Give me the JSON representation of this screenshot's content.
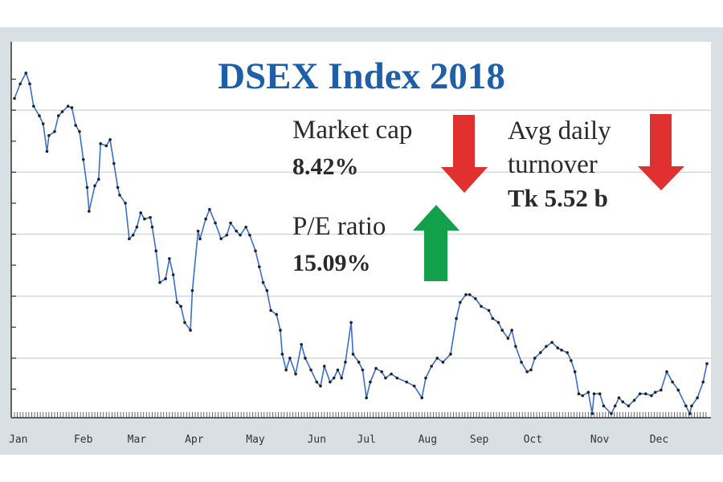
{
  "chart_data": {
    "type": "line",
    "title": "DSEX Index 2018",
    "xlabel": "",
    "ylabel": "",
    "x_unit": "day of year 2018",
    "xlim": [
      0,
      362
    ],
    "ylim": [
      5200,
      6400
    ],
    "grid": true,
    "gridlines_y": [
      5400,
      5600,
      5800,
      6000,
      6200
    ],
    "month_ticks": [
      {
        "label": "Jan",
        "day": 2
      },
      {
        "label": "Feb",
        "day": 36
      },
      {
        "label": "Mar",
        "day": 64
      },
      {
        "label": "Apr",
        "day": 94
      },
      {
        "label": "May",
        "day": 126
      },
      {
        "label": "Jun",
        "day": 158
      },
      {
        "label": "Jul",
        "day": 184
      },
      {
        "label": "Aug",
        "day": 216
      },
      {
        "label": "Sep",
        "day": 243
      },
      {
        "label": "Oct",
        "day": 271
      },
      {
        "label": "Nov",
        "day": 306
      },
      {
        "label": "Dec",
        "day": 337
      }
    ],
    "series": [
      {
        "name": "DSEX",
        "color": "#3a6fc4",
        "x": [
          0,
          3,
          6,
          8,
          10,
          13,
          15,
          17,
          18,
          21,
          23,
          25,
          28,
          30,
          32,
          34,
          36,
          38,
          39,
          42,
          44,
          45,
          48,
          50,
          52,
          54,
          55,
          58,
          60,
          62,
          64,
          66,
          68,
          71,
          72,
          74,
          76,
          79,
          81,
          83,
          85,
          87,
          89,
          92,
          93,
          96,
          97,
          100,
          102,
          105,
          108,
          111,
          113,
          116,
          118,
          121,
          123,
          126,
          128,
          130,
          132,
          134,
          137,
          139,
          140,
          142,
          144,
          147,
          150,
          152,
          155,
          158,
          160,
          162,
          165,
          167,
          169,
          171,
          173,
          176,
          177,
          180,
          182,
          184,
          186,
          189,
          192,
          194,
          197,
          200,
          205,
          209,
          213,
          215,
          218,
          221,
          224,
          228,
          231,
          233,
          236,
          238,
          241,
          244,
          248,
          250,
          253,
          255,
          258,
          260,
          262,
          265,
          268,
          270,
          272,
          275,
          278,
          281,
          284,
          286,
          289,
          291,
          293,
          295,
          297,
          300,
          302,
          303,
          306,
          308,
          312,
          314,
          316,
          318,
          321,
          324,
          327,
          330,
          333,
          335,
          338,
          341,
          344,
          347,
          351,
          353,
          354,
          357,
          360,
          362
        ],
        "values": [
          6238,
          6285,
          6320,
          6285,
          6213,
          6182,
          6156,
          6067,
          6118,
          6131,
          6182,
          6195,
          6213,
          6208,
          6151,
          6131,
          6041,
          5951,
          5874,
          5956,
          5977,
          6092,
          6085,
          6105,
          6028,
          5951,
          5926,
          5900,
          5785,
          5797,
          5823,
          5869,
          5849,
          5854,
          5823,
          5746,
          5644,
          5656,
          5721,
          5669,
          5580,
          5567,
          5515,
          5490,
          5618,
          5810,
          5785,
          5849,
          5880,
          5836,
          5785,
          5797,
          5836,
          5810,
          5797,
          5823,
          5797,
          5746,
          5695,
          5644,
          5618,
          5554,
          5541,
          5490,
          5413,
          5362,
          5400,
          5349,
          5444,
          5400,
          5362,
          5323,
          5310,
          5374,
          5323,
          5336,
          5362,
          5336,
          5387,
          5515,
          5413,
          5387,
          5362,
          5272,
          5323,
          5367,
          5356,
          5336,
          5349,
          5336,
          5323,
          5310,
          5272,
          5336,
          5374,
          5400,
          5387,
          5413,
          5528,
          5580,
          5605,
          5605,
          5592,
          5567,
          5554,
          5528,
          5515,
          5490,
          5464,
          5490,
          5438,
          5387,
          5356,
          5362,
          5400,
          5418,
          5438,
          5451,
          5433,
          5426,
          5418,
          5392,
          5356,
          5285,
          5279,
          5290,
          5221,
          5285,
          5285,
          5246,
          5221,
          5246,
          5272,
          5259,
          5246,
          5264,
          5285,
          5285,
          5279,
          5290,
          5297,
          5356,
          5323,
          5297,
          5246,
          5221,
          5246,
          5272,
          5323,
          5382
        ]
      }
    ],
    "annotations": {
      "market_cap_label": "Market cap",
      "market_cap_value": "8.42%",
      "market_cap_direction": "down",
      "pe_label": "P/E ratio",
      "pe_value": "15.09%",
      "pe_direction": "up",
      "turnover_label_1": "Avg daily",
      "turnover_label_2": "turnover",
      "turnover_value": "Tk 5.52 b",
      "turnover_direction": "down"
    },
    "colors": {
      "title": "#1f5fa8",
      "down": "#e03030",
      "up": "#12a04a",
      "line": "#3a6fc4"
    }
  }
}
